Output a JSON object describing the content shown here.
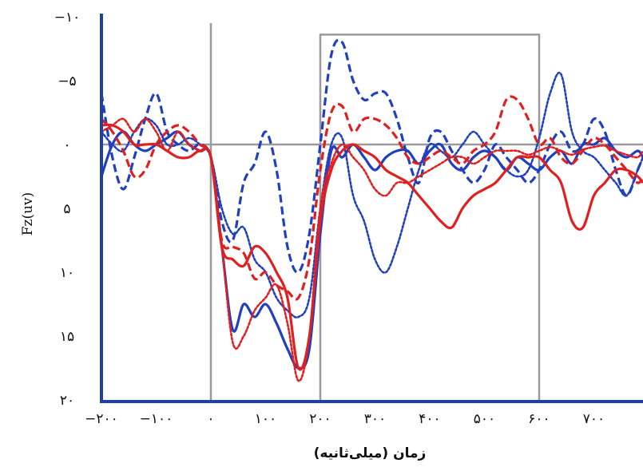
{
  "chart_data": {
    "type": "line",
    "title": "",
    "xlabel": "زمان (میلی‌ثانیه)",
    "ylabel": "Fz(uv)",
    "xlim": [
      -200,
      800
    ],
    "ylim": [
      20,
      -10
    ],
    "y_axis_inverted": true,
    "x_ticks": [
      {
        "value": -200,
        "label": "−۲۰۰"
      },
      {
        "value": -100,
        "label": "−۱۰۰"
      },
      {
        "value": 0,
        "label": "۰"
      },
      {
        "value": 100,
        "label": "۱۰۰"
      },
      {
        "value": 200,
        "label": "۲۰۰"
      },
      {
        "value": 300,
        "label": "۳۰۰"
      },
      {
        "value": 400,
        "label": "۴۰۰"
      },
      {
        "value": 500,
        "label": "۵۰۰"
      },
      {
        "value": 600,
        "label": "۶۰۰"
      },
      {
        "value": 700,
        "label": "۷۰۰"
      }
    ],
    "y_ticks": [
      {
        "value": -10,
        "label": "−۱۰"
      },
      {
        "value": -5,
        "label": "−۵"
      },
      {
        "value": 0,
        "label": "۰"
      },
      {
        "value": 5,
        "label": "۵"
      },
      {
        "value": 10,
        "label": "۱۰"
      },
      {
        "value": 15,
        "label": "۱۵"
      },
      {
        "value": 20,
        "label": "۲۰"
      }
    ],
    "reference_lines": {
      "vertical_x": 0,
      "horizontal_y": 0
    },
    "analysis_window": {
      "x0": 200,
      "x1": 600,
      "y_top": -8.6
    },
    "grid": false,
    "series": [
      {
        "color": "#2040c0",
        "style": "dashed",
        "x": [
          -200,
          -180,
          -160,
          -140,
          -120,
          -100,
          -80,
          -60,
          -40,
          -20,
          0,
          20,
          40,
          60,
          80,
          100,
          120,
          140,
          160,
          180,
          200,
          220,
          240,
          260,
          280,
          300,
          320,
          340,
          360,
          380,
          400,
          420,
          440,
          460,
          480,
          500,
          520,
          540,
          560,
          580,
          600,
          620,
          640,
          660,
          680,
          700,
          720,
          740,
          760,
          780,
          800
        ],
        "y": [
          -4,
          1,
          3.5,
          1,
          -2,
          -4,
          -1,
          0,
          0.5,
          0,
          1,
          6,
          7.5,
          3,
          1.5,
          -1,
          2,
          8,
          10,
          7,
          0,
          -7,
          -8,
          -5,
          -3.5,
          -4,
          -4,
          -2,
          1,
          3,
          -0.5,
          -1,
          0.5,
          2,
          3,
          2,
          0,
          1,
          2,
          3,
          2,
          0,
          -1,
          0.5,
          0,
          -2,
          -1,
          2,
          4,
          2,
          1
        ]
      },
      {
        "color": "#2040c0",
        "style": "dotted",
        "x": [
          -200,
          -180,
          -160,
          -140,
          -120,
          -100,
          -80,
          -60,
          -40,
          -20,
          0,
          20,
          40,
          60,
          80,
          100,
          120,
          140,
          160,
          180,
          200,
          220,
          240,
          260,
          280,
          300,
          320,
          340,
          360,
          380,
          400,
          420,
          440,
          460,
          480,
          500,
          520,
          540,
          560,
          580,
          600,
          620,
          640,
          660,
          680,
          700,
          720,
          740,
          760,
          780,
          800
        ],
        "y": [
          -1,
          0,
          0.5,
          -1,
          -2,
          -1.5,
          0,
          0,
          -0.5,
          0,
          1,
          5,
          7,
          6.5,
          9,
          10,
          12,
          13,
          13.5,
          12,
          5,
          0,
          -0.5,
          4,
          6,
          9,
          10,
          8,
          5,
          2,
          0,
          0.5,
          1,
          0,
          -1,
          0,
          1,
          2,
          2.5,
          2,
          -0.5,
          -4,
          -5.5,
          -1,
          0.5,
          1,
          2,
          3,
          4,
          2,
          1
        ]
      },
      {
        "color": "#2040c0",
        "style": "solid",
        "x": [
          -200,
          -180,
          -160,
          -140,
          -120,
          -100,
          -80,
          -60,
          -40,
          -20,
          0,
          20,
          40,
          60,
          80,
          100,
          120,
          140,
          160,
          180,
          200,
          220,
          240,
          260,
          280,
          300,
          320,
          340,
          360,
          380,
          400,
          420,
          440,
          460,
          480,
          500,
          520,
          540,
          560,
          580,
          600,
          620,
          640,
          660,
          680,
          700,
          720,
          740,
          760,
          780,
          800
        ],
        "y": [
          2.5,
          0,
          -1,
          0,
          0.5,
          0,
          -0.5,
          -1,
          0,
          0.5,
          1,
          8,
          14.5,
          12.5,
          13.5,
          12.5,
          14,
          16,
          17.5,
          16,
          7,
          0.5,
          1,
          0,
          1,
          2,
          1,
          0.5,
          0.5,
          1.5,
          0.5,
          0,
          1.5,
          2,
          1,
          0.5,
          1,
          2,
          1,
          1.5,
          2,
          1,
          0.5,
          1.5,
          0,
          0,
          -0.5,
          0.5,
          1,
          0.5,
          1
        ]
      },
      {
        "color": "#e02020",
        "style": "dashed",
        "x": [
          -200,
          -180,
          -160,
          -140,
          -120,
          -100,
          -80,
          -60,
          -40,
          -20,
          0,
          20,
          40,
          60,
          80,
          100,
          120,
          140,
          160,
          180,
          200,
          220,
          240,
          260,
          280,
          300,
          320,
          340,
          360,
          380,
          400,
          420,
          440,
          460,
          480,
          500,
          520,
          540,
          560,
          580,
          600,
          620,
          640,
          660,
          680,
          700,
          720,
          740,
          760,
          780,
          800
        ],
        "y": [
          -2,
          -1,
          0.5,
          2.5,
          2,
          0,
          -1,
          -1.5,
          -1,
          0,
          1,
          7.5,
          8,
          8.5,
          10.5,
          10,
          11,
          11.5,
          12,
          9,
          2,
          -2.5,
          -3,
          -1,
          -2,
          -2,
          -1.5,
          -0.5,
          1,
          1.5,
          1,
          0.5,
          1,
          1.5,
          0.5,
          0,
          -1,
          -3.5,
          -3.5,
          -2,
          0,
          -0.5,
          1,
          1.5,
          0.5,
          -0.5,
          0,
          1,
          2,
          3,
          2.5
        ]
      },
      {
        "color": "#e02020",
        "style": "dotted",
        "x": [
          -200,
          -180,
          -160,
          -140,
          -120,
          -100,
          -80,
          -60,
          -40,
          -20,
          0,
          20,
          40,
          60,
          80,
          100,
          120,
          140,
          160,
          180,
          200,
          220,
          240,
          260,
          280,
          300,
          320,
          340,
          360,
          380,
          400,
          420,
          440,
          460,
          480,
          500,
          520,
          540,
          560,
          580,
          600,
          620,
          640,
          660,
          680,
          700,
          720,
          740,
          760,
          780,
          800
        ],
        "y": [
          -1,
          -1.5,
          -2,
          -1,
          -2,
          -1,
          0.5,
          -1,
          0,
          0.5,
          1,
          8,
          15.5,
          15,
          13,
          12,
          11,
          14,
          18.5,
          15,
          5,
          1.5,
          0,
          1,
          2,
          3.5,
          4,
          3,
          3,
          2.5,
          2,
          1.5,
          1,
          1,
          1.5,
          1,
          0.5,
          0.5,
          0.5,
          0.8,
          0.5,
          0.2,
          0.5,
          0.8,
          0.4,
          0.2,
          0.1,
          0.5,
          0.8,
          1,
          0.5
        ]
      },
      {
        "color": "#e02020",
        "style": "solid",
        "x": [
          -200,
          -180,
          -160,
          -140,
          -120,
          -100,
          -80,
          -60,
          -40,
          -20,
          0,
          20,
          40,
          60,
          80,
          100,
          120,
          140,
          160,
          180,
          200,
          220,
          240,
          260,
          280,
          300,
          320,
          340,
          360,
          380,
          400,
          420,
          440,
          460,
          480,
          500,
          520,
          540,
          560,
          580,
          600,
          620,
          640,
          660,
          680,
          700,
          720,
          740,
          760,
          780,
          800
        ],
        "y": [
          -1.5,
          -1.5,
          -1,
          0,
          0,
          0,
          0.5,
          1,
          1,
          0.5,
          1,
          8,
          9,
          9.5,
          8,
          8.5,
          10,
          12,
          17.5,
          15,
          6,
          2,
          0.5,
          0,
          0.5,
          1,
          2,
          2.5,
          3,
          4,
          5,
          6,
          6.5,
          5,
          4,
          3.5,
          3,
          2,
          1,
          1,
          1,
          2,
          3,
          6,
          6.5,
          4,
          3,
          2,
          2,
          2.5,
          3
        ]
      }
    ]
  }
}
